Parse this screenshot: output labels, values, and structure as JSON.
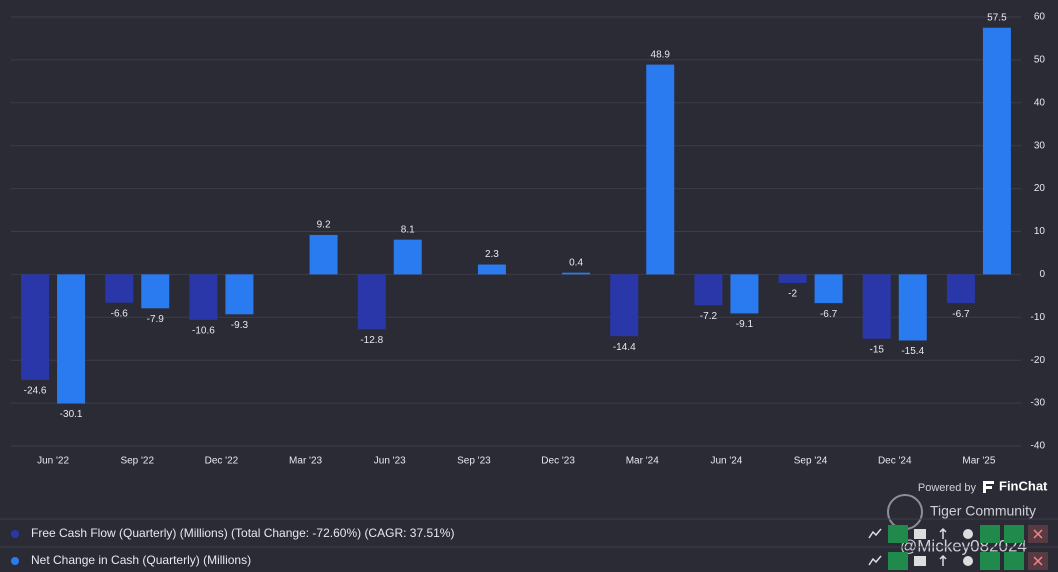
{
  "chart_data": {
    "type": "bar",
    "categories": [
      "Jun '22",
      "Sep '22",
      "Dec '22",
      "Mar '23",
      "Jun '23",
      "Sep '23",
      "Dec '23",
      "Mar '24",
      "Jun '24",
      "Sep '24",
      "Dec '24",
      "Mar '25"
    ],
    "series": [
      {
        "name": "Free Cash Flow (Quarterly) (Millions) (Total Change: -72.60%) (CAGR: 37.51%)",
        "color": "#2a37a8",
        "values": [
          -24.6,
          -6.6,
          -10.6,
          null,
          -12.8,
          null,
          null,
          -14.4,
          -7.2,
          -2,
          -15,
          -6.7
        ]
      },
      {
        "name": "Net Change in Cash (Quarterly) (Millions)",
        "color": "#2a7af0",
        "values": [
          -30.1,
          -7.9,
          -9.3,
          9.2,
          8.1,
          2.3,
          0.4,
          48.9,
          -9.1,
          -6.7,
          -15.4,
          57.5
        ]
      }
    ],
    "ylim": [
      -40,
      60
    ],
    "yticks": [
      -40,
      -30,
      -20,
      -10,
      0,
      10,
      20,
      30,
      40,
      50,
      60
    ],
    "grid": true,
    "credit": "Powered by",
    "brand": "FinChat",
    "watermark": [
      "Tiger Community",
      "@Mickey082024"
    ]
  }
}
